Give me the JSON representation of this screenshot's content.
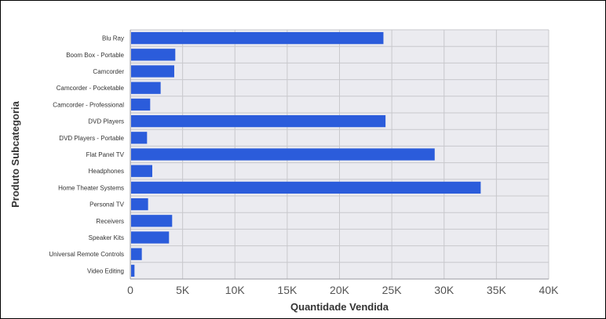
{
  "chart_data": {
    "type": "bar",
    "orientation": "horizontal",
    "categories": [
      "Blu Ray",
      "Boom Box - Portable",
      "Camcorder",
      "Camcorder - Pocketable",
      "Camcorder - Professional",
      "DVD Players",
      "DVD Players - Portable",
      "Flat Panel TV",
      "Headphones",
      "Home Theater Systems",
      "Personal TV",
      "Receivers",
      "Speaker Kits",
      "Universal Remote Controls",
      "Video Editing"
    ],
    "values": [
      24200,
      4300,
      4200,
      2900,
      1900,
      24400,
      1600,
      29100,
      2100,
      33500,
      1700,
      4000,
      3700,
      1100,
      400
    ],
    "xlabel": "Quantidade Vendida",
    "ylabel": "Produto Subcategoria",
    "xlim": [
      0,
      40000
    ],
    "xticks": [
      {
        "value": 0,
        "label": "0"
      },
      {
        "value": 5000,
        "label": "5K"
      },
      {
        "value": 10000,
        "label": "10K"
      },
      {
        "value": 15000,
        "label": "15K"
      },
      {
        "value": 20000,
        "label": "20K"
      },
      {
        "value": 25000,
        "label": "25K"
      },
      {
        "value": 30000,
        "label": "30K"
      },
      {
        "value": 35000,
        "label": "35K"
      },
      {
        "value": 40000,
        "label": "40K"
      }
    ],
    "grid": true,
    "colors": {
      "bar": "#2b5cdb",
      "plot_background": "#ebebf0",
      "gridline": "#c8c8cc"
    }
  }
}
